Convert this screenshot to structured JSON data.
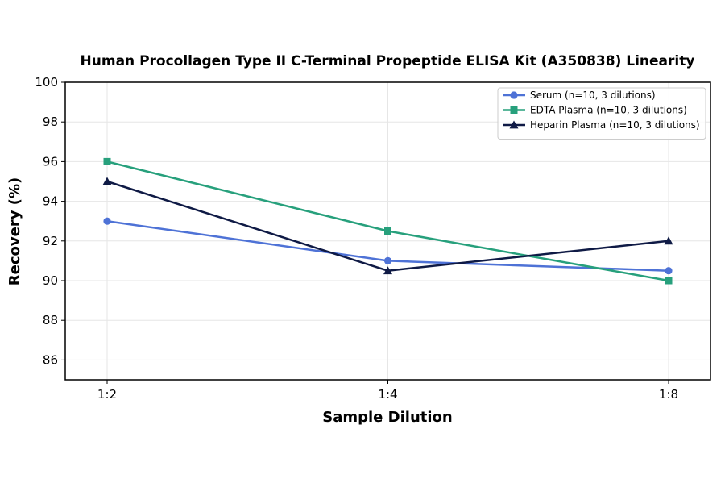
{
  "chart_data": {
    "type": "line",
    "title": "Human Procollagen Type II C-Terminal Propeptide ELISA Kit (A350838) Linearity",
    "xlabel": "Sample Dilution",
    "ylabel": "Recovery (%)",
    "categories": [
      "1:2",
      "1:4",
      "1:8"
    ],
    "ylim": [
      85,
      100
    ],
    "yticks": [
      86,
      88,
      90,
      92,
      94,
      96,
      98,
      100
    ],
    "grid": true,
    "legend_position": "top-right",
    "series": [
      {
        "name": "Serum (n=10, 3 dilutions)",
        "values": [
          93,
          91,
          90.5
        ],
        "color": "#4e72d6",
        "marker": "circle"
      },
      {
        "name": "EDTA Plasma (n=10, 3 dilutions)",
        "values": [
          96,
          92.5,
          90
        ],
        "color": "#27a07c",
        "marker": "square"
      },
      {
        "name": "Heparin Plasma (n=10, 3 dilutions)",
        "values": [
          95,
          90.5,
          92
        ],
        "color": "#0f1a45",
        "marker": "triangle"
      }
    ]
  }
}
